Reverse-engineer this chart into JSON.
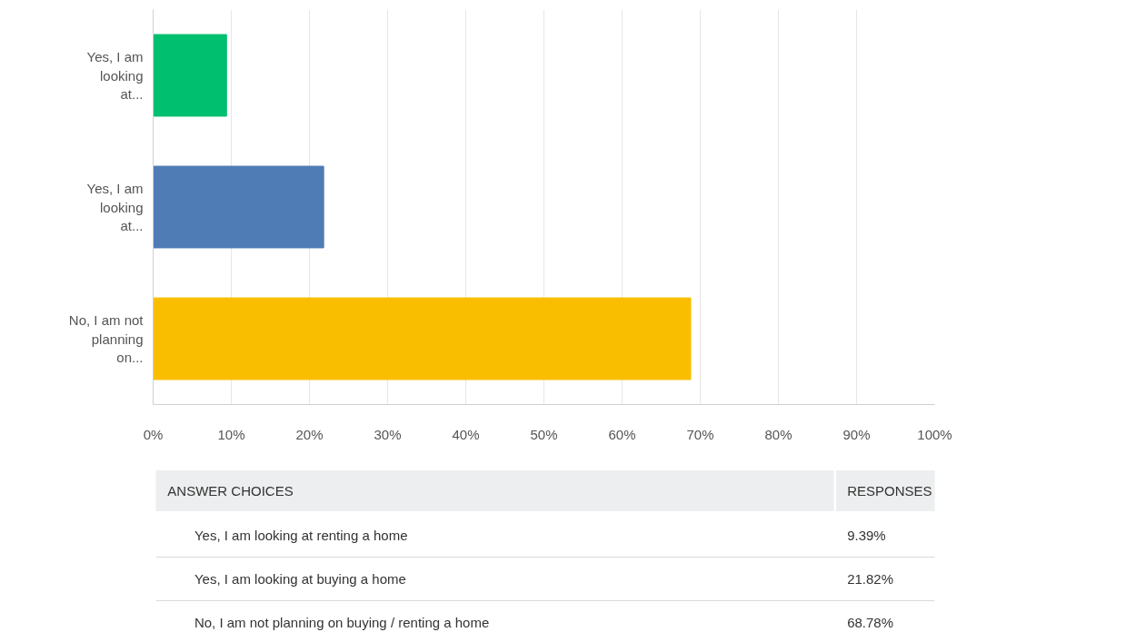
{
  "chart_data": {
    "type": "bar",
    "orientation": "horizontal",
    "categories": [
      "Yes, I am looking at...",
      "Yes, I am looking at...",
      "No, I am not planning on..."
    ],
    "values": [
      9.39,
      21.82,
      68.78
    ],
    "colors": [
      "#00bf6f",
      "#507cb6",
      "#f9be00"
    ],
    "xlim": [
      0,
      100
    ],
    "xticks": [
      {
        "value": 0,
        "label": "0%"
      },
      {
        "value": 10,
        "label": "10%"
      },
      {
        "value": 20,
        "label": "20%"
      },
      {
        "value": 30,
        "label": "30%"
      },
      {
        "value": 40,
        "label": "40%"
      },
      {
        "value": 50,
        "label": "50%"
      },
      {
        "value": 60,
        "label": "60%"
      },
      {
        "value": 70,
        "label": "70%"
      },
      {
        "value": 80,
        "label": "80%"
      },
      {
        "value": 90,
        "label": "90%"
      },
      {
        "value": 100,
        "label": "100%"
      }
    ],
    "grid": "x",
    "annotations": [
      "ANSWER CHOICES",
      "RESPONSES",
      "Yes, I am looking at renting a home",
      "Yes, I am looking at buying a home",
      "No, I am not planning on buying / renting a home",
      "9.39%",
      "21.82%",
      "68.78%"
    ]
  }
}
